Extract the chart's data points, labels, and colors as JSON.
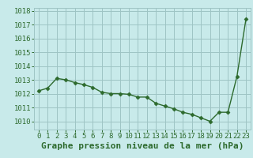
{
  "x": [
    0,
    1,
    2,
    3,
    4,
    5,
    6,
    7,
    8,
    9,
    10,
    11,
    12,
    13,
    14,
    15,
    16,
    17,
    18,
    19,
    20,
    21,
    22,
    23
  ],
  "y": [
    1012.2,
    1012.4,
    1013.1,
    1013.0,
    1012.8,
    1012.65,
    1012.45,
    1012.1,
    1012.0,
    1012.0,
    1011.95,
    1011.75,
    1011.75,
    1011.3,
    1011.1,
    1010.9,
    1010.65,
    1010.5,
    1010.25,
    1010.0,
    1010.65,
    1010.65,
    1013.25,
    1017.4
  ],
  "line_color": "#2d6a2d",
  "marker": "D",
  "marker_size": 2.5,
  "bg_color": "#c8eaea",
  "grid_color": "#9ec4c4",
  "ylabel_ticks": [
    1010,
    1011,
    1012,
    1013,
    1014,
    1015,
    1016,
    1017,
    1018
  ],
  "xtick_labels": [
    "0",
    "1",
    "2",
    "3",
    "4",
    "5",
    "6",
    "7",
    "8",
    "9",
    "10",
    "11",
    "12",
    "13",
    "14",
    "15",
    "16",
    "17",
    "18",
    "19",
    "20",
    "21",
    "22",
    "23"
  ],
  "xlabel": "Graphe pression niveau de la mer (hPa)",
  "ylim": [
    1009.4,
    1018.2
  ],
  "xlim": [
    -0.5,
    23.5
  ],
  "tick_color": "#2d6a2d",
  "label_color": "#2d6a2d",
  "xlabel_fontsize": 8,
  "tick_fontsize": 6.5
}
